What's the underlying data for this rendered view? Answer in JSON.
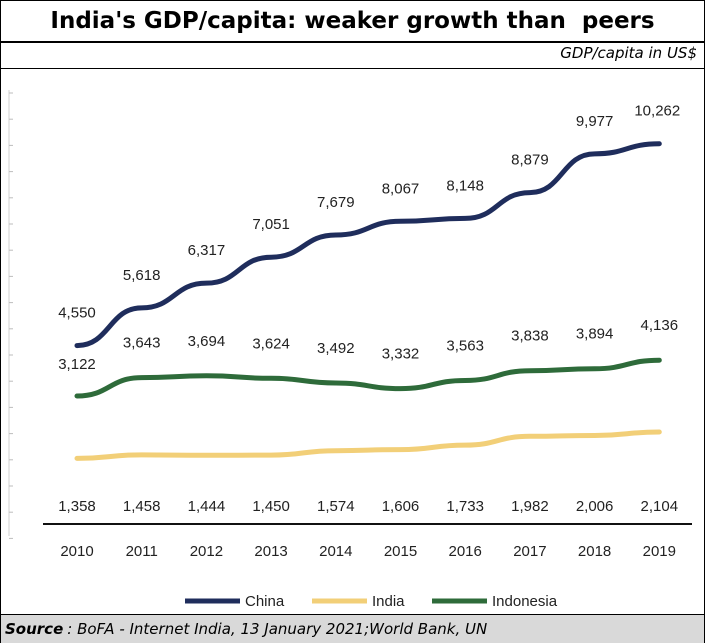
{
  "title": "India's GDP/capita: weaker growth than  peers",
  "unit_label": "GDP/capita in US$",
  "source": {
    "label": "Source",
    "text": ": BoFA - Internet India, 13 January 2021;World Bank, UN"
  },
  "chart_data": {
    "type": "line",
    "x": [
      "2010",
      "2011",
      "2012",
      "2013",
      "2014",
      "2015",
      "2016",
      "2017",
      "2018",
      "2019"
    ],
    "series": [
      {
        "name": "China",
        "color": "#1f2d5c",
        "values": [
          4550,
          5618,
          6317,
          7051,
          7679,
          8067,
          8148,
          8879,
          9977,
          10262
        ],
        "labels": [
          "4,550",
          "5,618",
          "6,317",
          "7,051",
          "7,679",
          "8,067",
          "8,148",
          "8,879",
          "9,977",
          "10,262"
        ]
      },
      {
        "name": "India",
        "color": "#f2cf78",
        "values": [
          1358,
          1458,
          1444,
          1450,
          1574,
          1606,
          1733,
          1982,
          2006,
          2104
        ],
        "labels": [
          "1,358",
          "1,458",
          "1,444",
          "1,450",
          "1,574",
          "1,606",
          "1,733",
          "1,982",
          "2,006",
          "2,104"
        ]
      },
      {
        "name": "Indonesia",
        "color": "#2e6b3a",
        "values": [
          3122,
          3643,
          3694,
          3624,
          3492,
          3332,
          3563,
          3838,
          3894,
          4136
        ],
        "labels": [
          "3,122",
          "3,643",
          "3,694",
          "3,624",
          "3,492",
          "3,332",
          "3,563",
          "3,838",
          "3,894",
          "4,136"
        ]
      }
    ],
    "ylim": [
      -500,
      11500
    ],
    "legend": "bottom",
    "grid": false
  }
}
